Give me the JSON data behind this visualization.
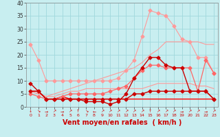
{
  "x": [
    0,
    1,
    2,
    3,
    4,
    5,
    6,
    7,
    8,
    9,
    10,
    11,
    12,
    13,
    14,
    15,
    16,
    17,
    18,
    19,
    20,
    21,
    22,
    23
  ],
  "series": [
    {
      "color": "#FF9999",
      "linewidth": 0.8,
      "marker": "D",
      "markersize": 2.5,
      "values": [
        24,
        18,
        10,
        10,
        10,
        10,
        10,
        10,
        10,
        10,
        10,
        11,
        14,
        18,
        27,
        37,
        36,
        35,
        31,
        26,
        25,
        19,
        19,
        13
      ]
    },
    {
      "color": "#FF9999",
      "linewidth": 0.8,
      "marker": null,
      "values": [
        6,
        5,
        4,
        5,
        6,
        7,
        8,
        9,
        10,
        11,
        12,
        13,
        14,
        15,
        17,
        20,
        22,
        25,
        25,
        25,
        25,
        25,
        24,
        24
      ]
    },
    {
      "color": "#FF9999",
      "linewidth": 0.8,
      "marker": null,
      "values": [
        6,
        5,
        4,
        4,
        5,
        6,
        6,
        7,
        7,
        7,
        7,
        7,
        7,
        7,
        7,
        8,
        9,
        9,
        9,
        9,
        9,
        8,
        8,
        7
      ]
    },
    {
      "color": "#FF6666",
      "linewidth": 0.9,
      "marker": "D",
      "markersize": 2.5,
      "values": [
        5,
        4,
        3,
        3,
        4,
        5,
        5,
        5,
        5,
        5,
        6,
        7,
        8,
        11,
        14,
        16,
        16,
        15,
        15,
        15,
        15,
        6,
        18,
        13
      ]
    },
    {
      "color": "#CC0000",
      "linewidth": 1.0,
      "marker": "D",
      "markersize": 2.5,
      "values": [
        9,
        6,
        3,
        3,
        3,
        3,
        3,
        2,
        2,
        2,
        1,
        2,
        5,
        11,
        15,
        19,
        19,
        16,
        15,
        15,
        6,
        6,
        6,
        3
      ]
    },
    {
      "color": "#CC0000",
      "linewidth": 1.0,
      "marker": "D",
      "markersize": 2.5,
      "values": [
        6,
        6,
        3,
        3,
        3,
        3,
        3,
        3,
        3,
        3,
        3,
        3,
        3,
        5,
        5,
        6,
        6,
        6,
        6,
        6,
        6,
        6,
        6,
        3
      ]
    },
    {
      "color": "#FF0000",
      "linewidth": 1.0,
      "marker": null,
      "values": [
        6,
        6,
        3,
        3,
        4,
        3,
        3,
        3,
        3,
        3,
        3,
        3,
        3,
        3,
        3,
        3,
        3,
        3,
        3,
        3,
        3,
        3,
        3,
        3
      ]
    }
  ],
  "arrows": [
    "↓",
    "↘",
    "→",
    "↗",
    "→",
    "↗",
    "↑",
    "↘",
    "←",
    "↗",
    "↗",
    "↗",
    "↗",
    "↗",
    "↗",
    "↑",
    "↗",
    "↗",
    "↗",
    "→",
    "↗",
    "↗",
    "→",
    "↗"
  ],
  "xlim": [
    -0.5,
    23.5
  ],
  "ylim": [
    0,
    40
  ],
  "yticks": [
    0,
    5,
    10,
    15,
    20,
    25,
    30,
    35,
    40
  ],
  "xticks": [
    0,
    1,
    2,
    3,
    4,
    5,
    6,
    7,
    8,
    9,
    10,
    11,
    12,
    13,
    14,
    15,
    16,
    17,
    18,
    19,
    20,
    21,
    22,
    23
  ],
  "xlabel": "Vent moyen/en rafales  ( km/h )",
  "bg_color": "#C8EEF0",
  "grid_color": "#A0D8DC",
  "tick_color": "#CC0000",
  "xlabel_color": "#CC0000"
}
